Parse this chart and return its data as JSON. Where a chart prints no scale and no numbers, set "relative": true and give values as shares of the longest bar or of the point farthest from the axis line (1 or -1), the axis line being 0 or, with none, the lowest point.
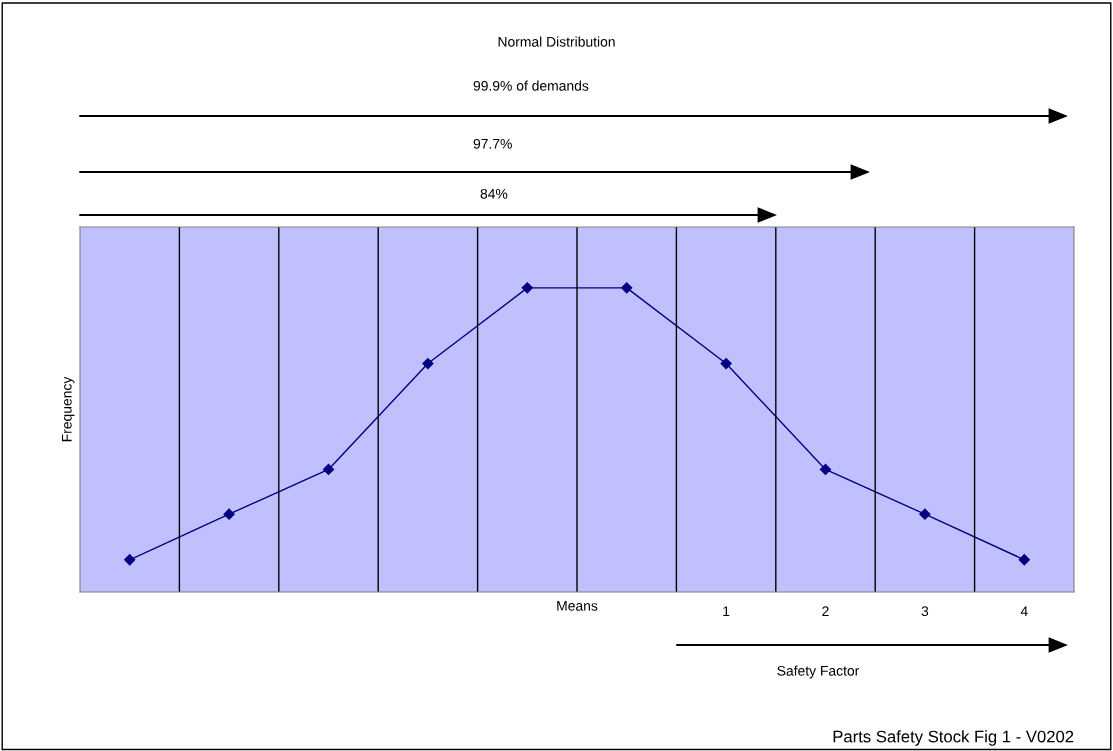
{
  "chart_data": {
    "type": "line",
    "title": "Normal Distribution",
    "ylabel": "Frequency",
    "categories": [
      null,
      null,
      null,
      null,
      null,
      null,
      "1",
      "2",
      "3",
      "4"
    ],
    "relative": true,
    "series": [
      {
        "color": "#000080",
        "values": [
          0.106,
          0.256,
          0.403,
          0.751,
          1,
          1,
          0.751,
          0.403,
          0.256,
          0.106
        ]
      }
    ],
    "marker": "diamond",
    "grid": "x",
    "legend": false,
    "annotations": [
      "99.9% of demands",
      "97.7%",
      "84%",
      "Means",
      "Safety Factor",
      "Parts Safety Stock Fig 1 - V0202"
    ]
  }
}
